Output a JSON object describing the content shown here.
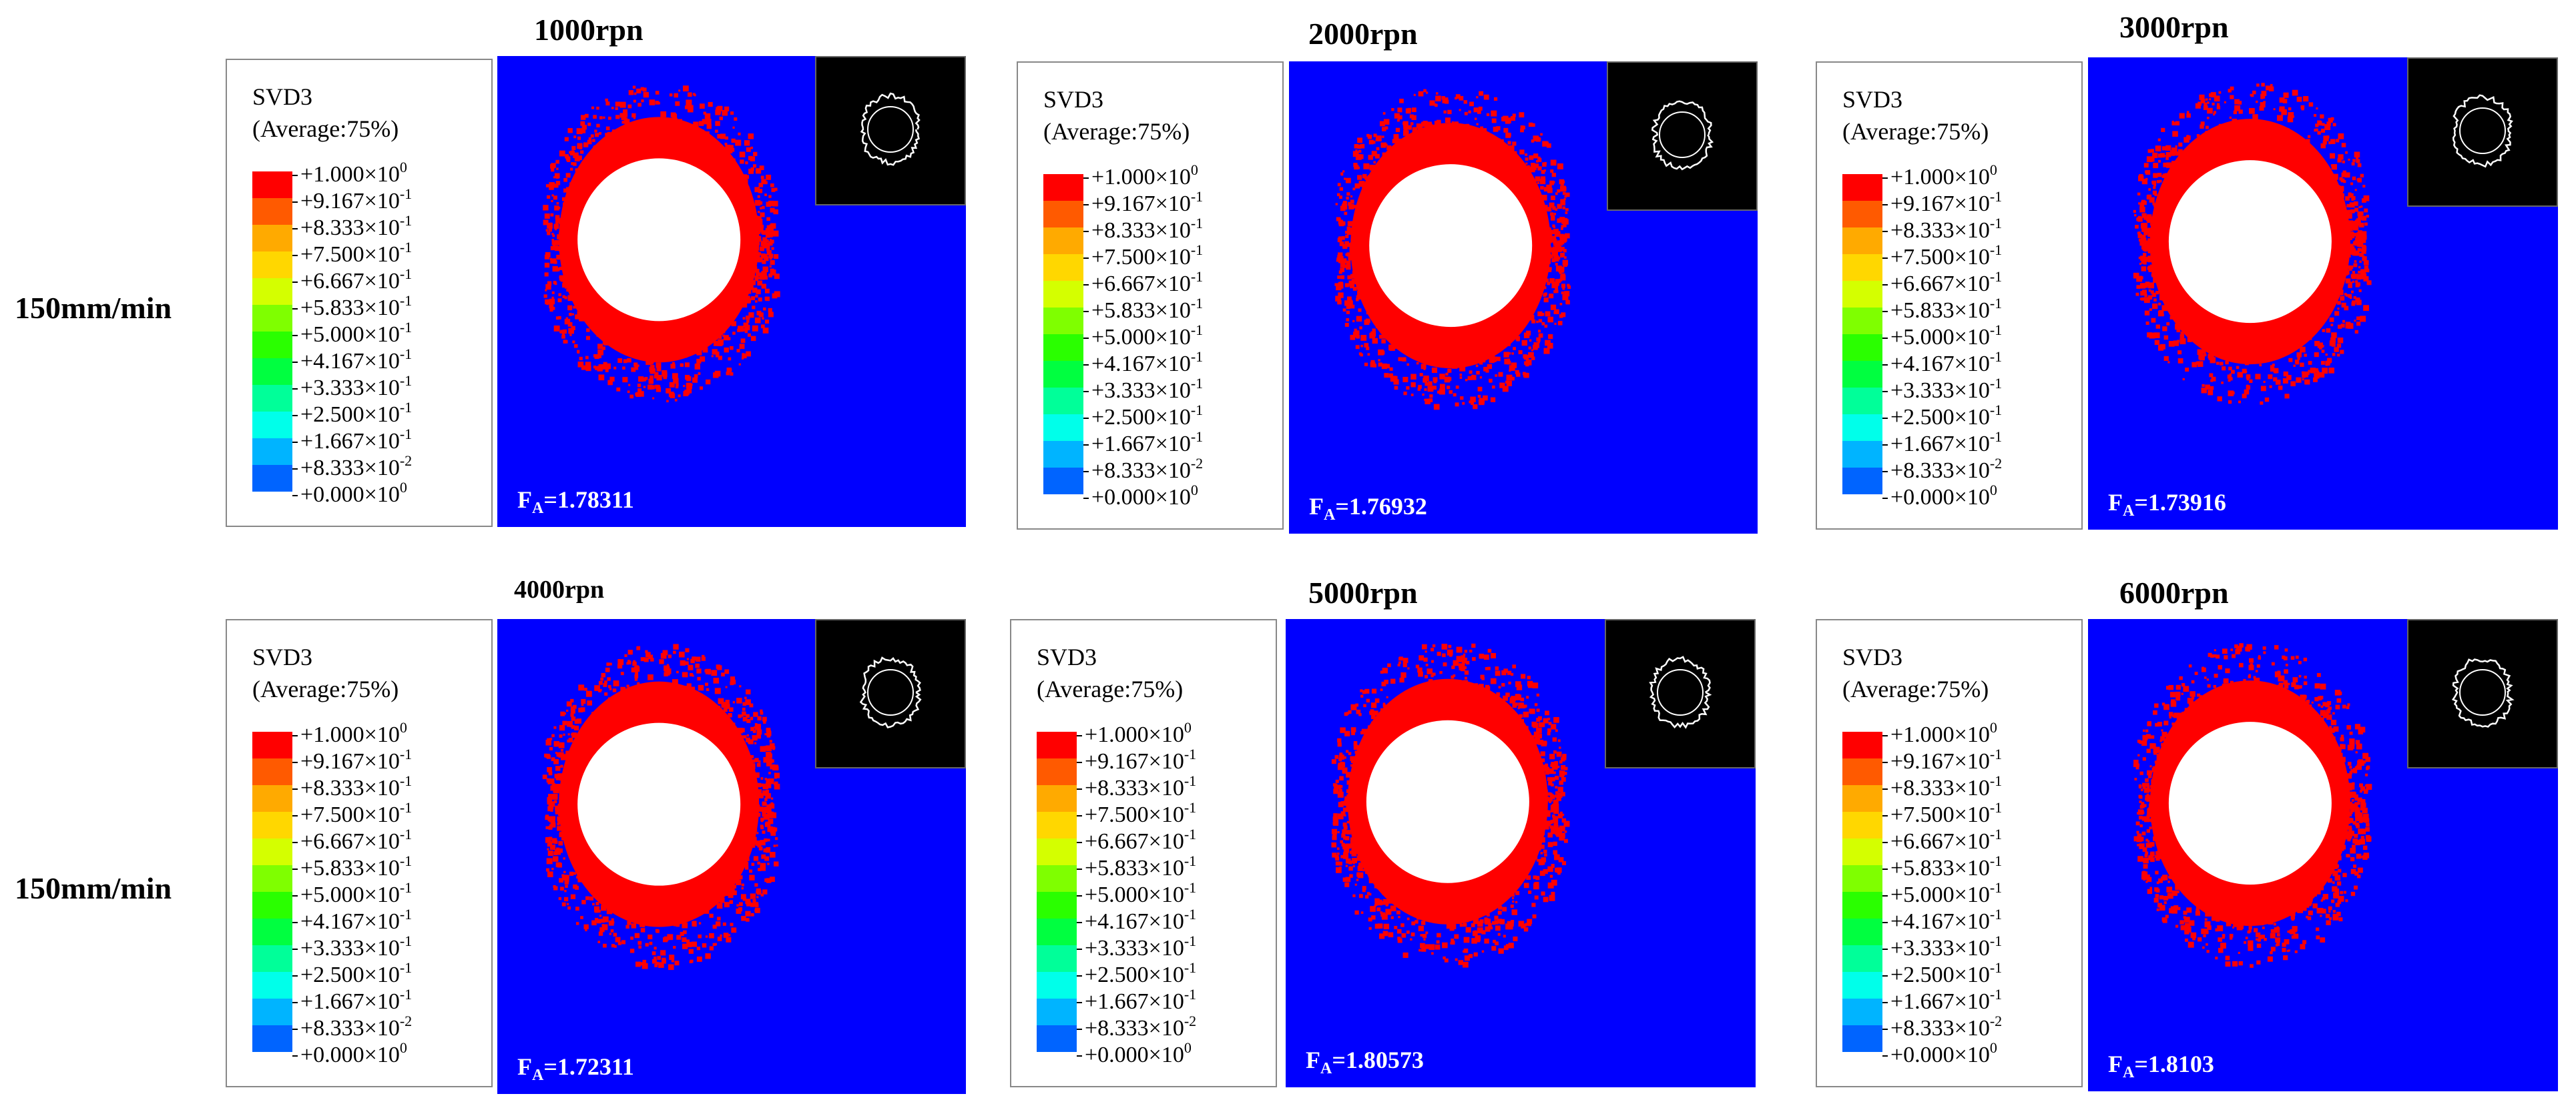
{
  "row_labels": [
    "150mm/min",
    "150mm/min"
  ],
  "legend": {
    "variable": "SVD3",
    "average": "(Average:75%)",
    "colors": [
      "#ff0000",
      "#ff5a00",
      "#ffaa00",
      "#ffd700",
      "#d4ff00",
      "#7fff00",
      "#2aff00",
      "#00ff40",
      "#00ff99",
      "#00ffea",
      "#00b4ff",
      "#0064ff",
      "#0000ff"
    ],
    "ticks": [
      {
        "m": "+1.000",
        "e": "0"
      },
      {
        "m": "+9.167",
        "e": "-1"
      },
      {
        "m": "+8.333",
        "e": "-1"
      },
      {
        "m": "+7.500",
        "e": "-1"
      },
      {
        "m": "+6.667",
        "e": "-1"
      },
      {
        "m": "+5.833",
        "e": "-1"
      },
      {
        "m": "+5.000",
        "e": "-1"
      },
      {
        "m": "+4.167",
        "e": "-1"
      },
      {
        "m": "+3.333",
        "e": "-1"
      },
      {
        "m": "+2.500",
        "e": "-1"
      },
      {
        "m": "+1.667",
        "e": "-1"
      },
      {
        "m": "+8.333",
        "e": "-2"
      },
      {
        "m": "+0.000",
        "e": "0"
      }
    ]
  },
  "fa_symbol": "F",
  "fa_subscript": "A",
  "panels": [
    {
      "speed": "1000rpn",
      "fa": "=1.78311"
    },
    {
      "speed": "2000rpn",
      "fa": "=1.76932"
    },
    {
      "speed": "3000rpn",
      "fa": "=1.73916"
    },
    {
      "speed": "4000rpn",
      "fa": "=1.72311"
    },
    {
      "speed": "5000rpn",
      "fa": "=1.80573"
    },
    {
      "speed": "6000rpn",
      "fa": "=1.8103"
    }
  ]
}
